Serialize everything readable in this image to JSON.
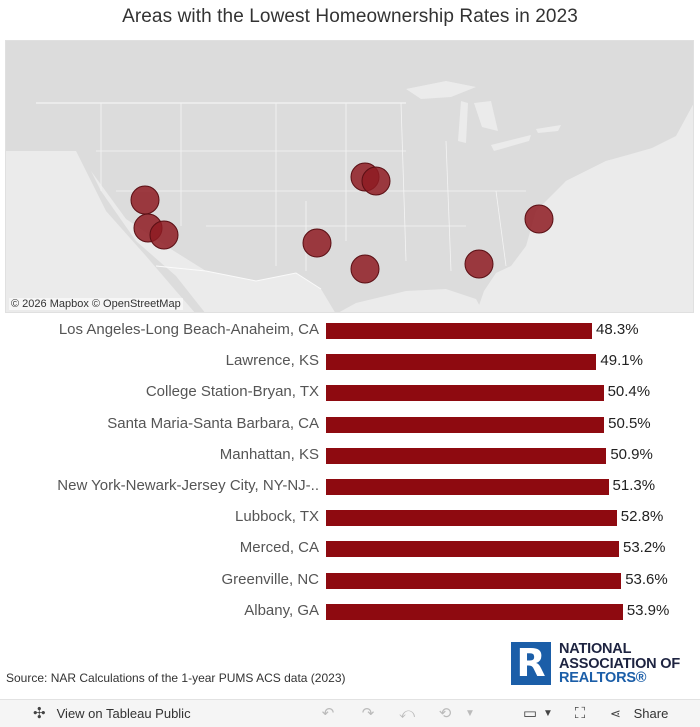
{
  "title": "Areas with the Lowest Homeownership Rates in 2023",
  "map": {
    "attribution_mapbox": "© 2026 Mapbox",
    "attribution_osm": "© OpenStreetMap",
    "marker_color": "#8e1b22"
  },
  "chart_data": {
    "type": "bar",
    "orientation": "horizontal",
    "title": "Areas with the Lowest Homeownership Rates in 2023",
    "xlim": [
      0,
      60
    ],
    "categories": [
      "Los Angeles-Long Beach-Anaheim, CA",
      "Lawrence, KS",
      "College Station-Bryan, TX",
      "Santa Maria-Santa Barbara, CA",
      "Manhattan, KS",
      "New York-Newark-Jersey City, NY-NJ-..",
      "Lubbock, TX",
      "Merced, CA",
      "Greenville, NC",
      "Albany, GA"
    ],
    "values": [
      48.3,
      49.1,
      50.4,
      50.5,
      50.9,
      51.3,
      52.8,
      53.2,
      53.6,
      53.9
    ],
    "value_labels": [
      "48.3%",
      "49.1%",
      "50.4%",
      "50.5%",
      "50.9%",
      "51.3%",
      "52.8%",
      "53.2%",
      "53.6%",
      "53.9%"
    ],
    "bar_color": "#8e0a10"
  },
  "source": "Source: NAR Calculations of the 1-year PUMS ACS data (2023)",
  "logo": {
    "letter": "R",
    "line1": "NATIONAL",
    "line2": "ASSOCIATION OF",
    "line3": "REALTORS®"
  },
  "toolbar": {
    "view_label": "View on Tableau Public",
    "share_label": "Share"
  }
}
